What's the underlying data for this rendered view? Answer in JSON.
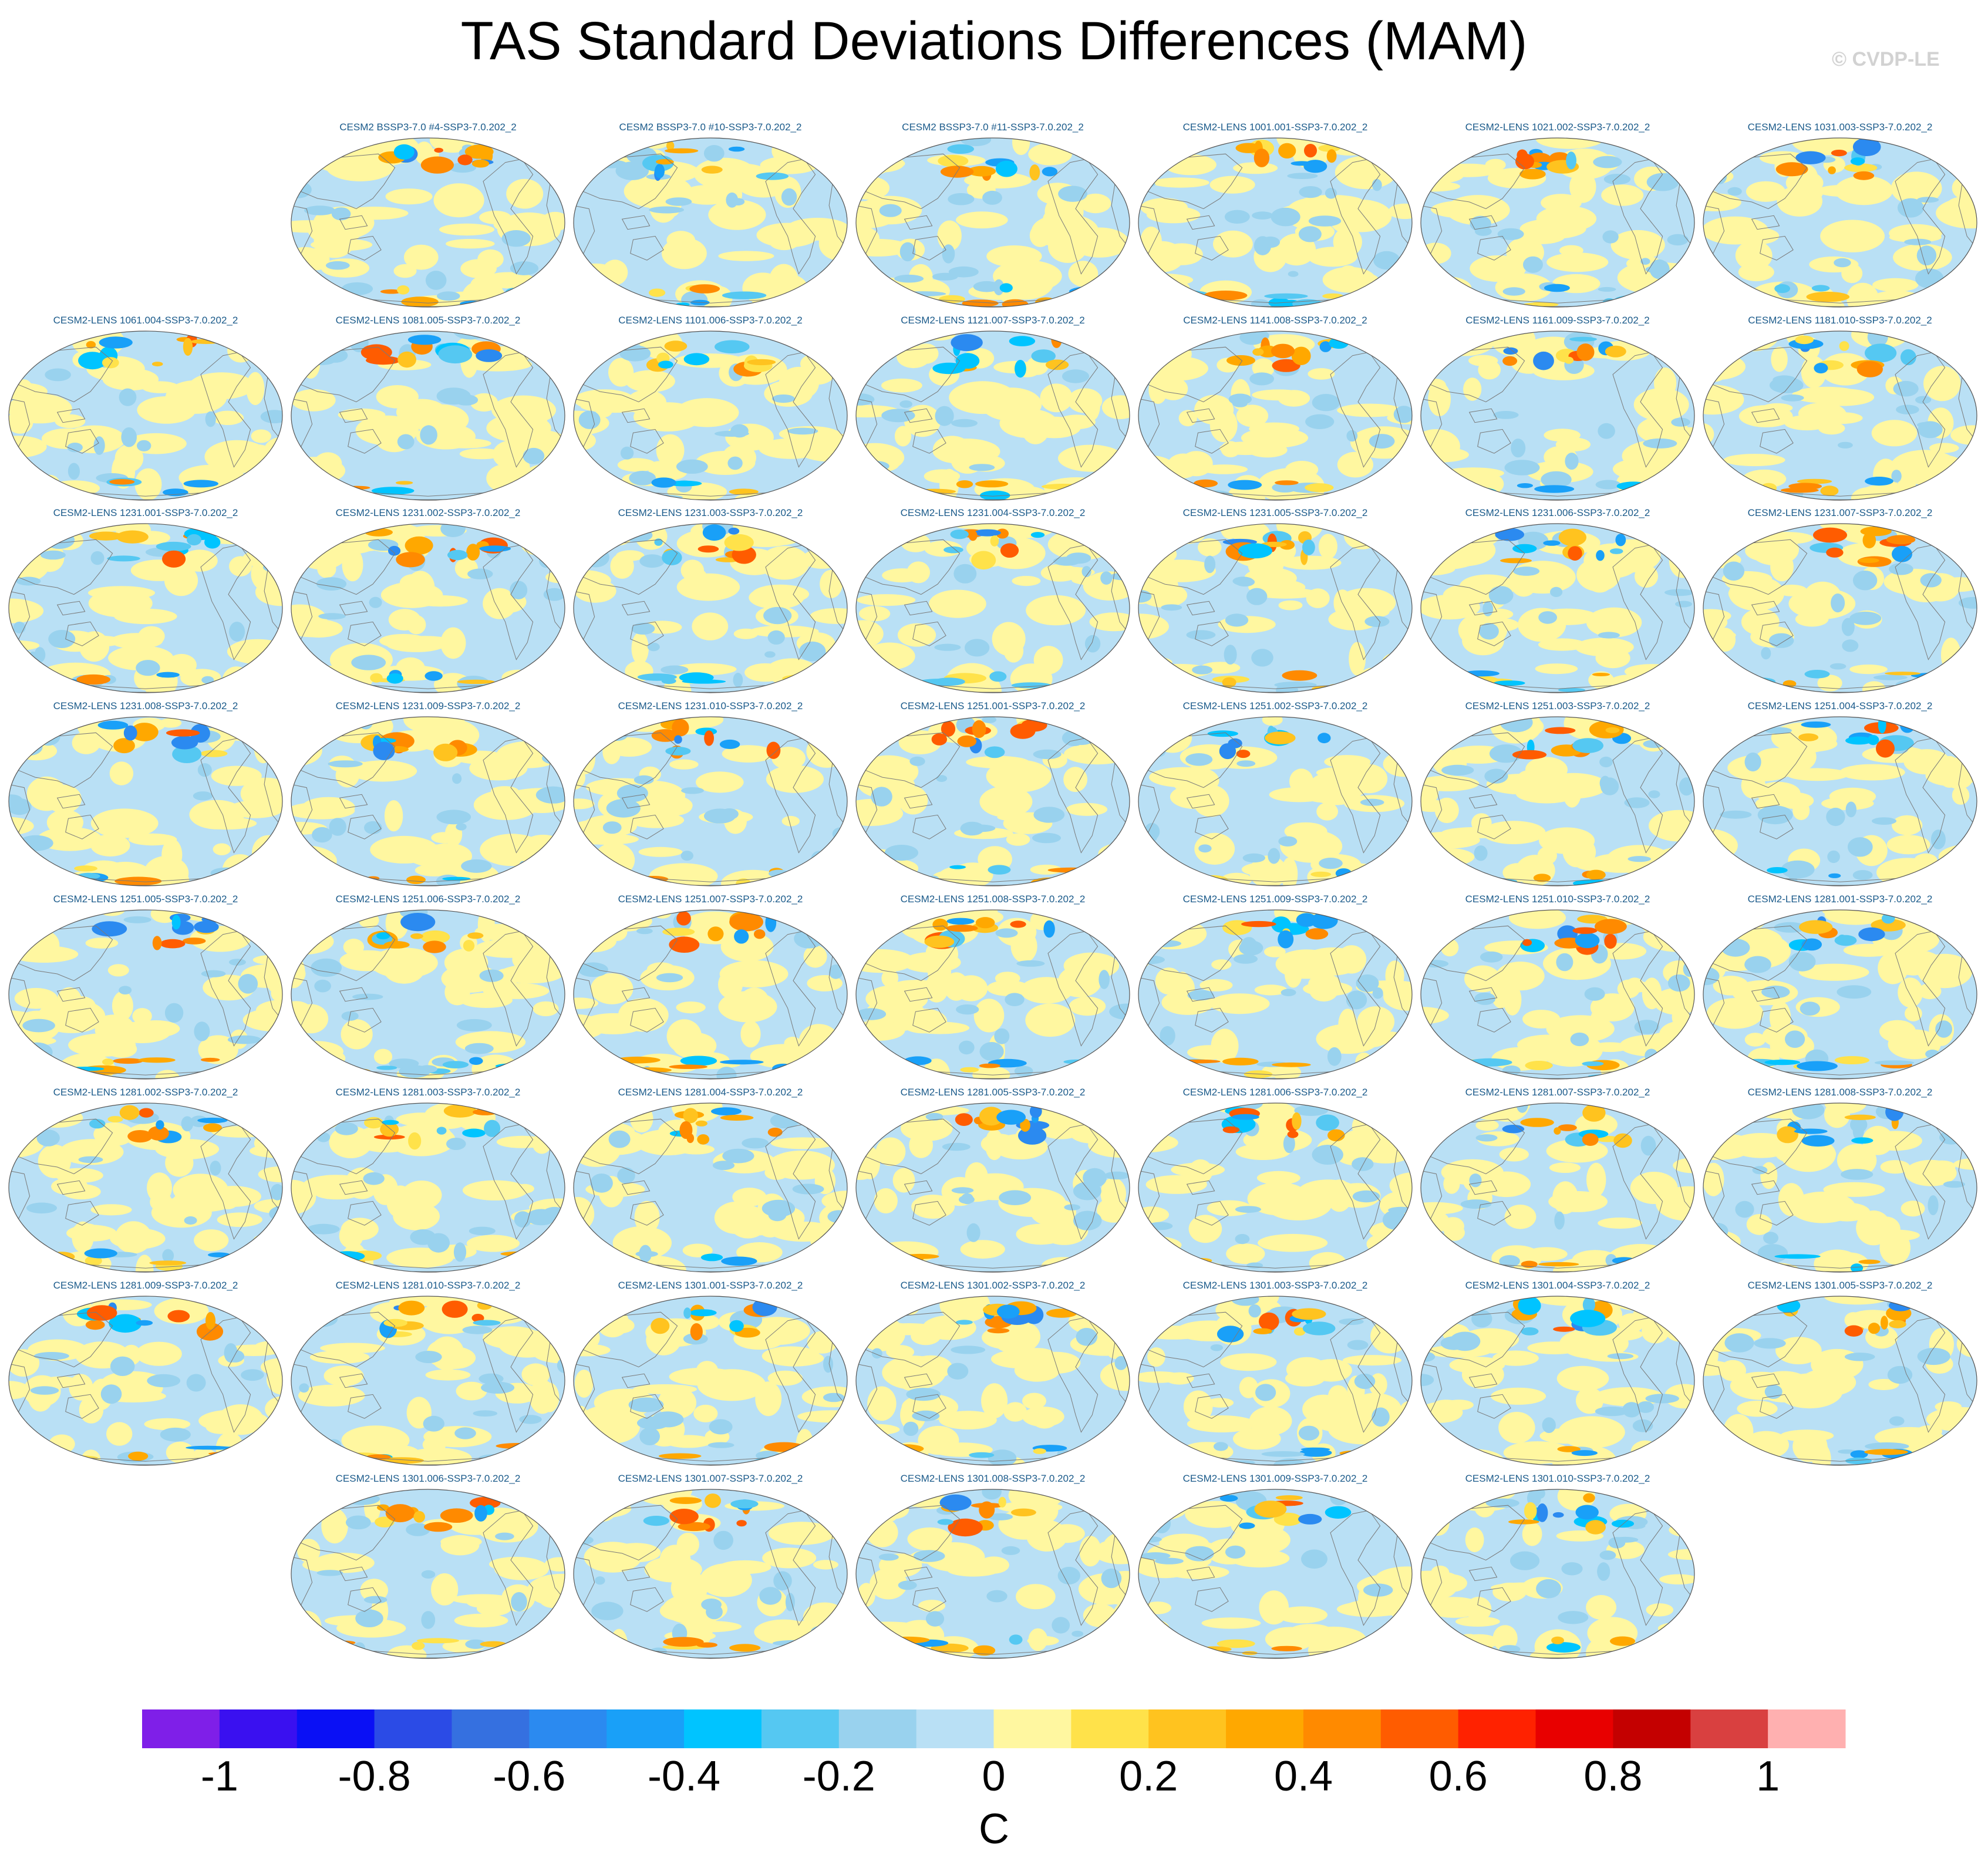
{
  "figure": {
    "title": "TAS Standard Deviations Differences (MAM)",
    "watermark": "© CVDP-LE"
  },
  "chart_data": {
    "type": "heatmap",
    "title": "TAS Standard Deviations Differences (MAM)",
    "map_projection": "global equal-area ellipse, Pacific-centered, continental outlines",
    "colorbar": {
      "unit": "C",
      "levels": [
        -1.1,
        -1.0,
        -0.9,
        -0.8,
        -0.7,
        -0.6,
        -0.5,
        -0.4,
        -0.3,
        -0.2,
        -0.1,
        0,
        0.1,
        0.2,
        0.3,
        0.4,
        0.5,
        0.6,
        0.7,
        0.8,
        0.9,
        1.0,
        1.1
      ],
      "colors": [
        "#7f1fe8",
        "#3a10f0",
        "#0a10f5",
        "#2b4be6",
        "#3570e0",
        "#2b8af0",
        "#19a0f8",
        "#00c4ff",
        "#55c8f2",
        "#99d2ee",
        "#b9e0f5",
        "#fff7a0",
        "#ffe24a",
        "#ffc31f",
        "#ffa800",
        "#ff8a00",
        "#ff5c00",
        "#ff2200",
        "#e80000",
        "#c40000",
        "#d94040",
        "#ffb0b0"
      ],
      "tick_labels": [
        "-1",
        "-0.8",
        "-0.6",
        "-0.4",
        "-0.2",
        "0",
        "0.2",
        "0.4",
        "0.6",
        "0.8",
        "1"
      ],
      "tick_values": [
        -1,
        -0.8,
        -0.6,
        -0.4,
        -0.2,
        0,
        0.2,
        0.4,
        0.6,
        0.8,
        1
      ]
    },
    "panels": [
      {
        "row": 0,
        "col": 1,
        "label": "CESM2 BSSP3-7.0 #4-SSP3-7.0.202_2"
      },
      {
        "row": 0,
        "col": 2,
        "label": "CESM2 BSSP3-7.0 #10-SSP3-7.0.202_2"
      },
      {
        "row": 0,
        "col": 3,
        "label": "CESM2 BSSP3-7.0 #11-SSP3-7.0.202_2"
      },
      {
        "row": 0,
        "col": 4,
        "label": "CESM2-LENS 1001.001-SSP3-7.0.202_2"
      },
      {
        "row": 0,
        "col": 5,
        "label": "CESM2-LENS 1021.002-SSP3-7.0.202_2"
      },
      {
        "row": 0,
        "col": 6,
        "label": "CESM2-LENS 1031.003-SSP3-7.0.202_2"
      },
      {
        "row": 1,
        "col": 0,
        "label": "CESM2-LENS 1061.004-SSP3-7.0.202_2"
      },
      {
        "row": 1,
        "col": 1,
        "label": "CESM2-LENS 1081.005-SSP3-7.0.202_2"
      },
      {
        "row": 1,
        "col": 2,
        "label": "CESM2-LENS 1101.006-SSP3-7.0.202_2"
      },
      {
        "row": 1,
        "col": 3,
        "label": "CESM2-LENS 1121.007-SSP3-7.0.202_2"
      },
      {
        "row": 1,
        "col": 4,
        "label": "CESM2-LENS 1141.008-SSP3-7.0.202_2"
      },
      {
        "row": 1,
        "col": 5,
        "label": "CESM2-LENS 1161.009-SSP3-7.0.202_2"
      },
      {
        "row": 1,
        "col": 6,
        "label": "CESM2-LENS 1181.010-SSP3-7.0.202_2"
      },
      {
        "row": 2,
        "col": 0,
        "label": "CESM2-LENS 1231.001-SSP3-7.0.202_2"
      },
      {
        "row": 2,
        "col": 1,
        "label": "CESM2-LENS 1231.002-SSP3-7.0.202_2"
      },
      {
        "row": 2,
        "col": 2,
        "label": "CESM2-LENS 1231.003-SSP3-7.0.202_2"
      },
      {
        "row": 2,
        "col": 3,
        "label": "CESM2-LENS 1231.004-SSP3-7.0.202_2"
      },
      {
        "row": 2,
        "col": 4,
        "label": "CESM2-LENS 1231.005-SSP3-7.0.202_2"
      },
      {
        "row": 2,
        "col": 5,
        "label": "CESM2-LENS 1231.006-SSP3-7.0.202_2"
      },
      {
        "row": 2,
        "col": 6,
        "label": "CESM2-LENS 1231.007-SSP3-7.0.202_2"
      },
      {
        "row": 3,
        "col": 0,
        "label": "CESM2-LENS 1231.008-SSP3-7.0.202_2"
      },
      {
        "row": 3,
        "col": 1,
        "label": "CESM2-LENS 1231.009-SSP3-7.0.202_2"
      },
      {
        "row": 3,
        "col": 2,
        "label": "CESM2-LENS 1231.010-SSP3-7.0.202_2"
      },
      {
        "row": 3,
        "col": 3,
        "label": "CESM2-LENS 1251.001-SSP3-7.0.202_2"
      },
      {
        "row": 3,
        "col": 4,
        "label": "CESM2-LENS 1251.002-SSP3-7.0.202_2"
      },
      {
        "row": 3,
        "col": 5,
        "label": "CESM2-LENS 1251.003-SSP3-7.0.202_2"
      },
      {
        "row": 3,
        "col": 6,
        "label": "CESM2-LENS 1251.004-SSP3-7.0.202_2"
      },
      {
        "row": 4,
        "col": 0,
        "label": "CESM2-LENS 1251.005-SSP3-7.0.202_2"
      },
      {
        "row": 4,
        "col": 1,
        "label": "CESM2-LENS 1251.006-SSP3-7.0.202_2"
      },
      {
        "row": 4,
        "col": 2,
        "label": "CESM2-LENS 1251.007-SSP3-7.0.202_2"
      },
      {
        "row": 4,
        "col": 3,
        "label": "CESM2-LENS 1251.008-SSP3-7.0.202_2"
      },
      {
        "row": 4,
        "col": 4,
        "label": "CESM2-LENS 1251.009-SSP3-7.0.202_2"
      },
      {
        "row": 4,
        "col": 5,
        "label": "CESM2-LENS 1251.010-SSP3-7.0.202_2"
      },
      {
        "row": 4,
        "col": 6,
        "label": "CESM2-LENS 1281.001-SSP3-7.0.202_2"
      },
      {
        "row": 5,
        "col": 0,
        "label": "CESM2-LENS 1281.002-SSP3-7.0.202_2"
      },
      {
        "row": 5,
        "col": 1,
        "label": "CESM2-LENS 1281.003-SSP3-7.0.202_2"
      },
      {
        "row": 5,
        "col": 2,
        "label": "CESM2-LENS 1281.004-SSP3-7.0.202_2"
      },
      {
        "row": 5,
        "col": 3,
        "label": "CESM2-LENS 1281.005-SSP3-7.0.202_2"
      },
      {
        "row": 5,
        "col": 4,
        "label": "CESM2-LENS 1281.006-SSP3-7.0.202_2"
      },
      {
        "row": 5,
        "col": 5,
        "label": "CESM2-LENS 1281.007-SSP3-7.0.202_2"
      },
      {
        "row": 5,
        "col": 6,
        "label": "CESM2-LENS 1281.008-SSP3-7.0.202_2"
      },
      {
        "row": 6,
        "col": 0,
        "label": "CESM2-LENS 1281.009-SSP3-7.0.202_2"
      },
      {
        "row": 6,
        "col": 1,
        "label": "CESM2-LENS 1281.010-SSP3-7.0.202_2"
      },
      {
        "row": 6,
        "col": 2,
        "label": "CESM2-LENS 1301.001-SSP3-7.0.202_2"
      },
      {
        "row": 6,
        "col": 3,
        "label": "CESM2-LENS 1301.002-SSP3-7.0.202_2"
      },
      {
        "row": 6,
        "col": 4,
        "label": "CESM2-LENS 1301.003-SSP3-7.0.202_2"
      },
      {
        "row": 6,
        "col": 5,
        "label": "CESM2-LENS 1301.004-SSP3-7.0.202_2"
      },
      {
        "row": 6,
        "col": 6,
        "label": "CESM2-LENS 1301.005-SSP3-7.0.202_2"
      },
      {
        "row": 7,
        "col": 1,
        "label": "CESM2-LENS 1301.006-SSP3-7.0.202_2"
      },
      {
        "row": 7,
        "col": 2,
        "label": "CESM2-LENS 1301.007-SSP3-7.0.202_2"
      },
      {
        "row": 7,
        "col": 3,
        "label": "CESM2-LENS 1301.008-SSP3-7.0.202_2"
      },
      {
        "row": 7,
        "col": 4,
        "label": "CESM2-LENS 1301.009-SSP3-7.0.202_2"
      },
      {
        "row": 7,
        "col": 5,
        "label": "CESM2-LENS 1301.010-SSP3-7.0.202_2"
      }
    ]
  }
}
